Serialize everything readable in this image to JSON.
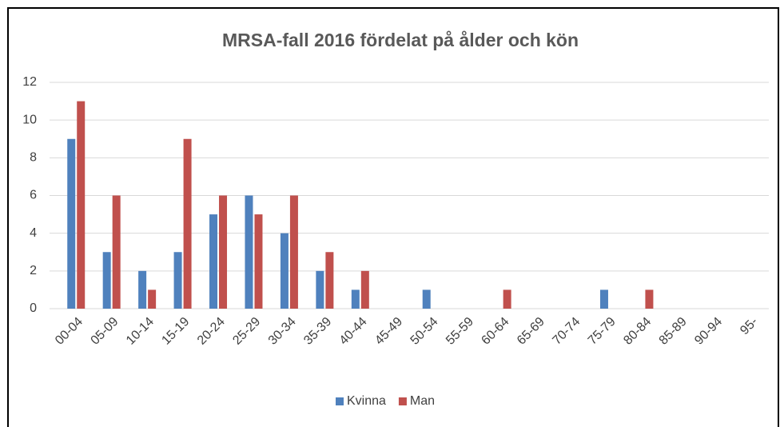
{
  "chart_data": {
    "type": "bar",
    "title": "MRSA-fall 2016 fördelat på ålder och kön",
    "categories": [
      "00-04",
      "05-09",
      "10-14",
      "15-19",
      "20-24",
      "25-29",
      "30-34",
      "35-39",
      "40-44",
      "45-49",
      "50-54",
      "55-59",
      "60-64",
      "65-69",
      "70-74",
      "75-79",
      "80-84",
      "85-89",
      "90-94",
      "95-"
    ],
    "series": [
      {
        "name": "Kvinna",
        "color": "#4f81bd",
        "values": [
          9,
          3,
          2,
          3,
          5,
          6,
          4,
          2,
          1,
          0,
          1,
          0,
          0,
          0,
          0,
          1,
          0,
          0,
          0,
          0
        ]
      },
      {
        "name": "Man",
        "color": "#c0504d",
        "values": [
          11,
          6,
          1,
          9,
          6,
          5,
          6,
          3,
          2,
          0,
          0,
          0,
          1,
          0,
          0,
          0,
          1,
          0,
          0,
          0
        ]
      }
    ],
    "ylim": [
      0,
      12
    ],
    "yticks": [
      0,
      2,
      4,
      6,
      8,
      10,
      12
    ],
    "grid": true,
    "legend": "bottom"
  }
}
